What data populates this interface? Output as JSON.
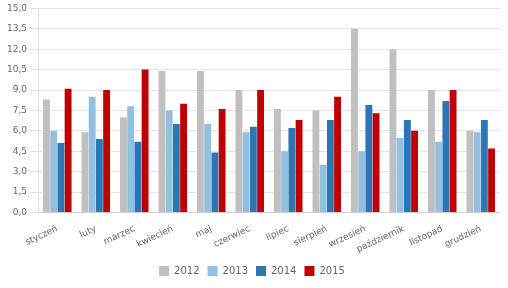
{
  "chart_data": {
    "type": "bar",
    "categories": [
      "styczeń",
      "luty",
      "marzec",
      "kwiecień",
      "maj",
      "czerwiec",
      "lipiec",
      "sierpień",
      "wrzesień",
      "październik",
      "listopad",
      "grudzień"
    ],
    "series": [
      {
        "name": "2012",
        "color": "#c0c0c0",
        "values": [
          8.3,
          5.9,
          7.0,
          10.4,
          10.4,
          9.0,
          7.6,
          7.5,
          13.5,
          12.0,
          9.0,
          6.0
        ]
      },
      {
        "name": "2013",
        "color": "#92c0e0",
        "values": [
          6.0,
          8.5,
          7.8,
          7.5,
          6.5,
          5.9,
          4.5,
          3.5,
          4.5,
          5.5,
          5.2,
          5.9
        ]
      },
      {
        "name": "2014",
        "color": "#2e75b6",
        "values": [
          5.1,
          5.4,
          5.2,
          6.5,
          4.4,
          6.3,
          6.2,
          6.8,
          7.9,
          6.8,
          8.2,
          6.8
        ]
      },
      {
        "name": "2015",
        "color": "#c00000",
        "values": [
          9.1,
          9.0,
          10.5,
          8.0,
          7.6,
          9.0,
          6.8,
          8.5,
          7.3,
          6.0,
          9.0,
          4.7
        ]
      }
    ],
    "ylim": [
      0,
      15.0
    ],
    "yticks": [
      {
        "value": 0.0,
        "label": "0,0"
      },
      {
        "value": 1.5,
        "label": "1,5"
      },
      {
        "value": 3.0,
        "label": "3,0"
      },
      {
        "value": 4.5,
        "label": "4,5"
      },
      {
        "value": 6.0,
        "label": "6,0"
      },
      {
        "value": 7.5,
        "label": "7,5"
      },
      {
        "value": 9.0,
        "label": "9,0"
      },
      {
        "value": 10.5,
        "label": "10,5"
      },
      {
        "value": 12.0,
        "label": "12,0"
      },
      {
        "value": 13.5,
        "label": "13,5"
      },
      {
        "value": 15.0,
        "label": "15,0"
      }
    ],
    "grid": true,
    "legend": "bottom"
  }
}
